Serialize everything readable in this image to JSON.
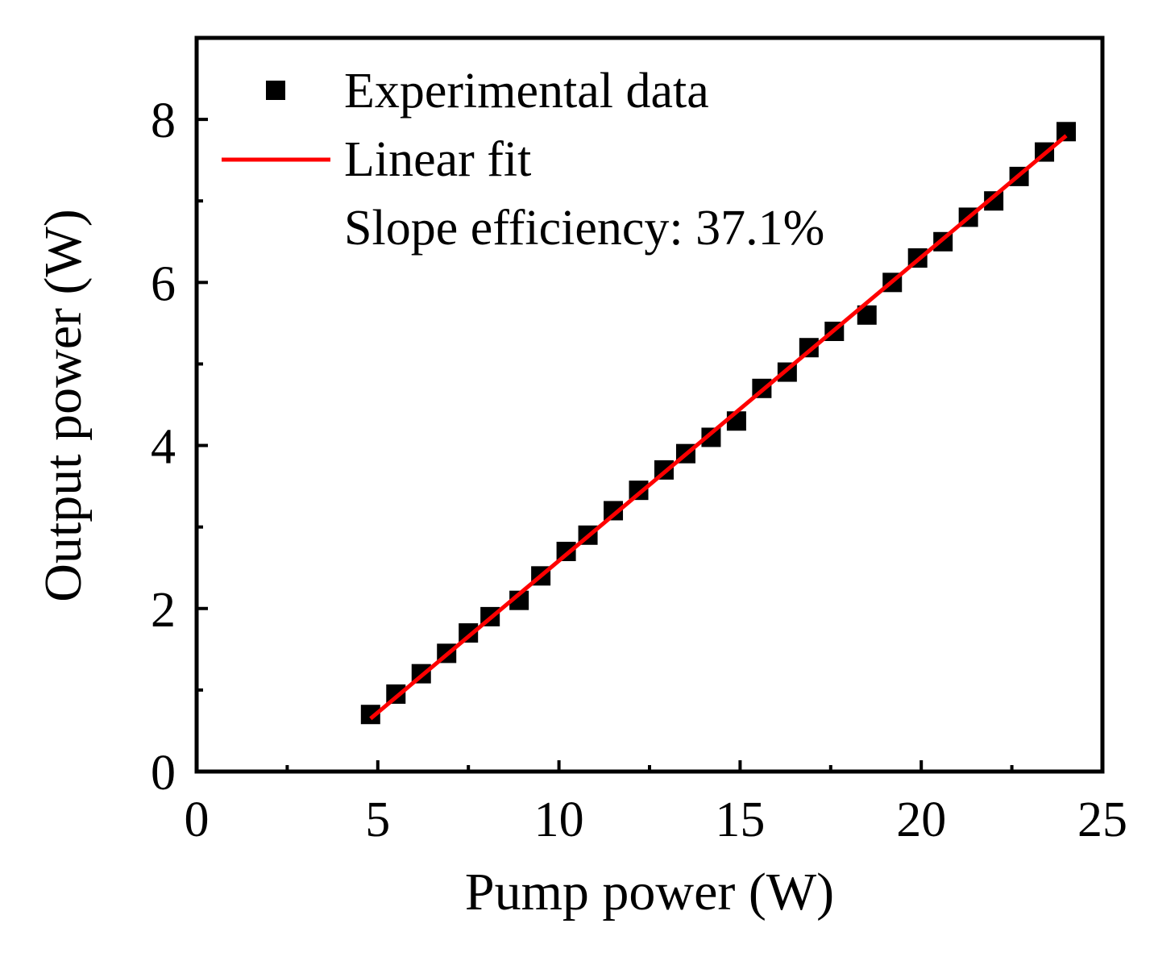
{
  "chart_data": {
    "type": "scatter",
    "title": "",
    "xlabel": "Pump power (W)",
    "ylabel": "Output power (W)",
    "xlim": [
      0,
      25
    ],
    "ylim": [
      0,
      9
    ],
    "xticks": [
      0,
      5,
      10,
      15,
      20,
      25
    ],
    "yticks": [
      0,
      2,
      4,
      6,
      8
    ],
    "xtick_labels": [
      "0",
      "5",
      "10",
      "15",
      "20",
      "25"
    ],
    "ytick_labels": [
      "0",
      "2",
      "4",
      "6",
      "8"
    ],
    "grid": false,
    "legend_position": "top-left",
    "series": [
      {
        "name": "Experimental data",
        "kind": "markers",
        "marker": "square",
        "color": "#000000",
        "x": [
          4.8,
          5.5,
          6.2,
          6.9,
          7.5,
          8.1,
          8.9,
          9.5,
          10.2,
          10.8,
          11.5,
          12.2,
          12.9,
          13.5,
          14.2,
          14.9,
          15.6,
          16.3,
          16.9,
          17.6,
          18.5,
          19.2,
          19.9,
          20.6,
          21.3,
          22.0,
          22.7,
          23.4,
          24.0
        ],
        "y": [
          0.7,
          0.95,
          1.2,
          1.45,
          1.7,
          1.9,
          2.1,
          2.4,
          2.7,
          2.9,
          3.2,
          3.45,
          3.7,
          3.9,
          4.1,
          4.3,
          4.7,
          4.9,
          5.2,
          5.4,
          5.6,
          6.0,
          6.3,
          6.5,
          6.8,
          7.0,
          7.3,
          7.6,
          7.85
        ]
      },
      {
        "name": "Linear fit",
        "kind": "line",
        "color": "#ff0000",
        "x": [
          4.8,
          24.0
        ],
        "y": [
          0.65,
          7.8
        ]
      }
    ],
    "annotations": [
      "Slope efficiency: 37.1%"
    ]
  }
}
